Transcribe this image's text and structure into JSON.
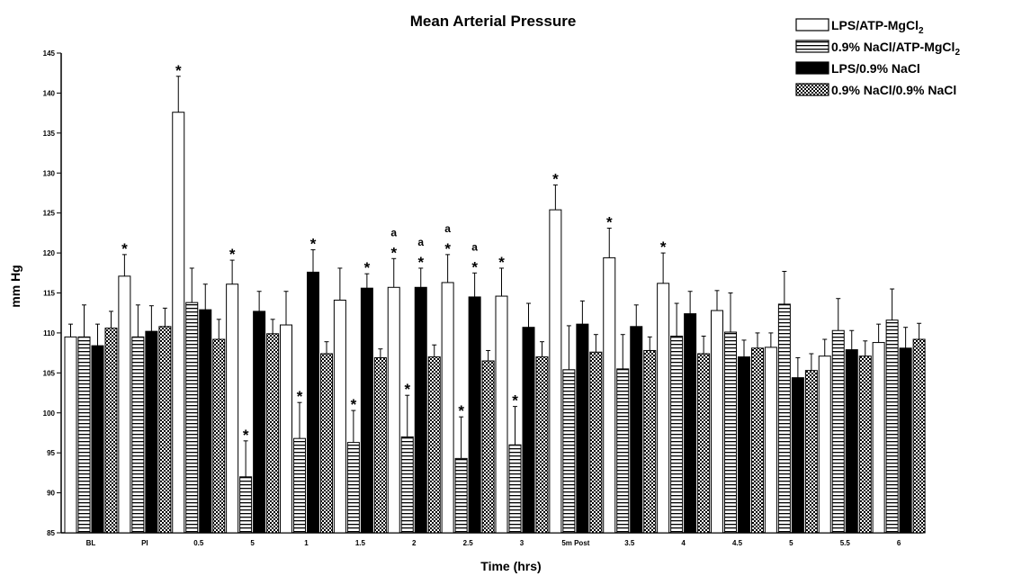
{
  "chart_data": {
    "type": "bar",
    "title": "Mean Arterial Pressure",
    "xlabel": "Time (hrs)",
    "ylabel": "mm Hg",
    "ylim": [
      85,
      145
    ],
    "yticks": [
      85,
      90,
      95,
      100,
      105,
      110,
      115,
      120,
      125,
      130,
      135,
      140,
      145
    ],
    "grid": false,
    "legend_position": "top-right",
    "categories": [
      "BL",
      "PI",
      "0.5",
      "5",
      "1",
      "1.5",
      "2",
      "2.5",
      "3",
      "5m Post",
      "3.5",
      "4",
      "4.5",
      "5",
      "5.5",
      "6"
    ],
    "series": [
      {
        "name": "LPS/ATP-MgCl2",
        "fill": "white",
        "values": [
          109.5,
          117.1,
          137.6,
          116.1,
          111.0,
          114.1,
          115.7,
          116.3,
          114.6,
          125.4,
          119.4,
          116.2,
          112.8,
          108.2,
          107.1,
          108.8
        ],
        "errors": [
          1.6,
          2.7,
          4.5,
          3.0,
          4.2,
          4.0,
          3.6,
          3.5,
          3.5,
          3.1,
          3.7,
          3.8,
          2.5,
          1.8,
          2.1,
          2.3
        ]
      },
      {
        "name": "0.9% NaCl/ATP-MgCl2",
        "fill": "hstripe",
        "values": [
          109.5,
          109.5,
          113.8,
          92.0,
          96.8,
          96.3,
          97.0,
          94.3,
          96.0,
          105.4,
          105.5,
          109.6,
          110.1,
          113.6,
          110.3,
          111.6
        ],
        "errors": [
          4.0,
          4.0,
          4.3,
          4.5,
          4.5,
          4.0,
          5.2,
          5.2,
          4.8,
          5.5,
          4.3,
          4.1,
          4.9,
          4.1,
          4.0,
          3.9
        ]
      },
      {
        "name": "LPS/0.9% NaCl",
        "fill": "black",
        "values": [
          108.4,
          110.2,
          112.9,
          112.7,
          117.6,
          115.6,
          115.7,
          114.5,
          110.7,
          111.1,
          110.8,
          112.4,
          107.0,
          104.4,
          107.9,
          108.1
        ],
        "errors": [
          2.7,
          3.2,
          3.2,
          2.5,
          2.8,
          1.8,
          2.4,
          3.0,
          3.0,
          2.9,
          2.7,
          2.8,
          2.1,
          2.5,
          2.4,
          2.6
        ]
      },
      {
        "name": "0.9% NaCl/0.9% NaCl",
        "fill": "crosshatch",
        "values": [
          110.6,
          110.8,
          109.2,
          109.9,
          107.4,
          106.9,
          107.0,
          106.5,
          107.0,
          107.6,
          107.8,
          107.4,
          108.1,
          105.3,
          107.1,
          109.2
        ],
        "errors": [
          2.1,
          2.3,
          2.5,
          1.8,
          1.5,
          1.1,
          1.5,
          1.3,
          1.9,
          2.2,
          1.7,
          2.2,
          1.9,
          2.1,
          1.9,
          2.0
        ]
      }
    ],
    "legend_labels": [
      {
        "main": "LPS/ATP-MgCl",
        "sub": "2"
      },
      {
        "main": "0.9% NaCl/ATP-MgCl",
        "sub": "2"
      },
      {
        "main": "LPS/0.9% NaCl",
        "sub": ""
      },
      {
        "main": "0.9% NaCl/0.9% NaCl",
        "sub": ""
      }
    ],
    "annotations": [
      {
        "category": "PI",
        "series": 0,
        "text": "*"
      },
      {
        "category": "0.5",
        "series": 0,
        "text": "*"
      },
      {
        "category": "5",
        "series": 0,
        "text": "*"
      },
      {
        "category": "5",
        "series": 1,
        "text": "*"
      },
      {
        "category": "1",
        "series": 1,
        "text": "*"
      },
      {
        "category": "1",
        "series": 2,
        "text": "*"
      },
      {
        "category": "1.5",
        "series": 1,
        "text": "*"
      },
      {
        "category": "1.5",
        "series": 2,
        "text": "*"
      },
      {
        "category": "2",
        "series": 0,
        "text": "*"
      },
      {
        "category": "2",
        "series": 0,
        "text": "a"
      },
      {
        "category": "2",
        "series": 1,
        "text": "*"
      },
      {
        "category": "2",
        "series": 2,
        "text": "*"
      },
      {
        "category": "2",
        "series": 2,
        "text": "a"
      },
      {
        "category": "2.5",
        "series": 0,
        "text": "*"
      },
      {
        "category": "2.5",
        "series": 0,
        "text": "a"
      },
      {
        "category": "2.5",
        "series": 1,
        "text": "*"
      },
      {
        "category": "2.5",
        "series": 2,
        "text": "*"
      },
      {
        "category": "2.5",
        "series": 2,
        "text": "a"
      },
      {
        "category": "3",
        "series": 0,
        "text": "*"
      },
      {
        "category": "3",
        "series": 1,
        "text": "*"
      },
      {
        "category": "5m Post",
        "series": 0,
        "text": "*"
      },
      {
        "category": "3.5",
        "series": 0,
        "text": "*"
      },
      {
        "category": "4",
        "series": 0,
        "text": "*"
      }
    ]
  }
}
